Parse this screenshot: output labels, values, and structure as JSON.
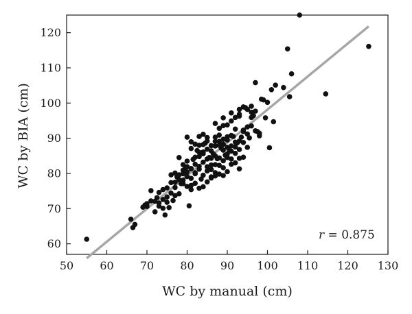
{
  "chart_data": {
    "type": "scatter",
    "title": "",
    "xlabel": "WC by manual (cm)",
    "ylabel": "WC by BIA (cm)",
    "xlim": [
      50,
      130
    ],
    "ylim": [
      57,
      125
    ],
    "xticks": [
      50,
      60,
      70,
      80,
      90,
      100,
      110,
      120,
      130
    ],
    "yticks": [
      60,
      70,
      80,
      90,
      100,
      110,
      120
    ],
    "grid": false,
    "annotation": {
      "prefix": "r",
      "text": " = 0.875"
    },
    "regression_line": {
      "color": "#a6a6a6",
      "x": [
        55,
        125.2
      ],
      "y": [
        55.9,
        121.8
      ]
    },
    "point_color": "#111111",
    "points": [
      [
        55,
        61.3
      ],
      [
        66,
        67
      ],
      [
        67,
        65.5
      ],
      [
        66.5,
        64.6
      ],
      [
        69,
        70.4
      ],
      [
        69.5,
        71
      ],
      [
        70,
        71.4
      ],
      [
        71,
        75.1
      ],
      [
        72,
        69.1
      ],
      [
        72.5,
        73.1
      ],
      [
        73,
        71.6
      ],
      [
        74,
        75.4
      ],
      [
        74.5,
        68.2
      ],
      [
        75,
        71.8
      ],
      [
        75.5,
        70.3
      ],
      [
        76,
        74.4
      ],
      [
        76.5,
        72.3
      ],
      [
        77,
        76
      ],
      [
        77.5,
        79
      ],
      [
        78,
        74.2
      ],
      [
        78.5,
        77.1
      ],
      [
        79,
        78.1
      ],
      [
        79.5,
        81.3
      ],
      [
        80,
        79.1
      ],
      [
        80.5,
        70.8
      ],
      [
        81,
        76.6
      ],
      [
        81.5,
        84
      ],
      [
        82,
        80.2
      ],
      [
        82.5,
        86.5
      ],
      [
        83,
        82
      ],
      [
        83.5,
        78.4
      ],
      [
        84,
        79.5
      ],
      [
        84.5,
        88.6
      ],
      [
        85,
        81.9
      ],
      [
        85.5,
        84.5
      ],
      [
        86,
        79
      ],
      [
        86.5,
        85.6
      ],
      [
        87,
        82.5
      ],
      [
        87.5,
        84.2
      ],
      [
        88,
        89.1
      ],
      [
        88.5,
        87.2
      ],
      [
        89,
        81.6
      ],
      [
        89.5,
        85.2
      ],
      [
        90,
        90.4
      ],
      [
        90.5,
        86.5
      ],
      [
        91,
        87.8
      ],
      [
        91.5,
        90.5
      ],
      [
        92,
        92.6
      ],
      [
        92.5,
        88.7
      ],
      [
        93,
        96.3
      ],
      [
        93.5,
        90.3
      ],
      [
        94,
        92.3
      ],
      [
        94.5,
        98.7
      ],
      [
        95,
        93.2
      ],
      [
        95.5,
        90.1
      ],
      [
        96,
        97.4
      ],
      [
        96.5,
        96.4
      ],
      [
        97,
        105.8
      ],
      [
        97.5,
        91.9
      ],
      [
        98,
        90.7
      ],
      [
        98.5,
        101.1
      ],
      [
        99,
        100.9
      ],
      [
        99.5,
        95.8
      ],
      [
        100,
        100.2
      ],
      [
        100.5,
        87.3
      ],
      [
        101,
        103.8
      ],
      [
        101.5,
        94.7
      ],
      [
        102,
        105.1
      ],
      [
        104,
        104.4
      ],
      [
        105,
        115.4
      ],
      [
        105.5,
        101.8
      ],
      [
        106,
        108.3
      ],
      [
        108,
        125
      ],
      [
        114.5,
        102.6
      ],
      [
        125.2,
        116.1
      ],
      [
        80,
        90.3
      ],
      [
        81,
        87.1
      ],
      [
        82,
        84.6
      ],
      [
        83,
        88
      ],
      [
        84,
        86.1
      ],
      [
        85,
        90.2
      ],
      [
        86,
        87.9
      ],
      [
        87,
        90.3
      ],
      [
        88,
        92.8
      ],
      [
        89,
        93.6
      ],
      [
        90,
        93.8
      ],
      [
        91,
        94.9
      ],
      [
        92,
        95.9
      ],
      [
        93,
        98.2
      ],
      [
        94,
        98.9
      ],
      [
        95,
        98.2
      ],
      [
        96,
        99.1
      ],
      [
        78,
        84.5
      ],
      [
        79,
        82.5
      ],
      [
        80,
        83.5
      ],
      [
        81,
        81.3
      ],
      [
        82,
        77.2
      ],
      [
        83,
        75.8
      ],
      [
        84,
        76.2
      ],
      [
        85,
        77.6
      ],
      [
        86,
        78.7
      ],
      [
        87,
        80.2
      ],
      [
        88,
        79.8
      ],
      [
        89,
        79.4
      ],
      [
        90,
        80.5
      ],
      [
        91,
        82.6
      ],
      [
        92,
        83
      ],
      [
        93,
        84.3
      ],
      [
        77,
        80.1
      ],
      [
        78,
        79.6
      ],
      [
        79,
        77.1
      ],
      [
        80,
        76.3
      ],
      [
        81,
        75.4
      ],
      [
        76,
        77.4
      ],
      [
        75,
        73.3
      ],
      [
        74,
        72.6
      ],
      [
        73,
        74.6
      ],
      [
        72,
        72.1
      ],
      [
        86,
        82.4
      ],
      [
        87,
        85
      ],
      [
        88,
        84.4
      ],
      [
        89,
        83.6
      ],
      [
        90,
        85.5
      ],
      [
        91,
        86.3
      ],
      [
        92,
        87.5
      ],
      [
        93,
        86.8
      ],
      [
        94,
        88.8
      ],
      [
        95,
        87.4
      ],
      [
        84,
        83.2
      ],
      [
        85,
        84.1
      ],
      [
        86,
        86.4
      ],
      [
        87,
        87.8
      ],
      [
        88,
        88
      ],
      [
        89,
        89.7
      ],
      [
        90,
        89.5
      ],
      [
        91,
        90.8
      ],
      [
        83,
        84.8
      ],
      [
        82,
        82.6
      ],
      [
        81,
        81.4
      ],
      [
        80,
        80.4
      ],
      [
        79,
        79.9
      ],
      [
        78,
        78.2
      ],
      [
        77,
        77.5
      ],
      [
        89,
        86.6
      ],
      [
        90,
        84.5
      ],
      [
        92,
        88.9
      ],
      [
        93,
        89.2
      ],
      [
        94,
        91.9
      ],
      [
        96,
        93.5
      ],
      [
        97,
        92.1
      ],
      [
        98,
        91.4
      ],
      [
        95,
        91.2
      ],
      [
        85,
        80.7
      ],
      [
        86,
        81.1
      ],
      [
        87,
        79.3
      ],
      [
        88,
        82.3
      ],
      [
        84,
        85.6
      ],
      [
        83,
        81.2
      ],
      [
        82,
        79.9
      ],
      [
        81,
        78.6
      ],
      [
        80,
        81.9
      ],
      [
        79,
        80.9
      ],
      [
        91,
        84.1
      ],
      [
        92,
        85.7
      ],
      [
        93,
        81.3
      ],
      [
        94,
        84.6
      ],
      [
        89,
        88.3
      ],
      [
        90,
        87.4
      ],
      [
        88,
        90.9
      ],
      [
        87,
        89.1
      ],
      [
        86,
        84.3
      ],
      [
        85,
        86.9
      ],
      [
        84,
        88.2
      ],
      [
        83,
        86
      ],
      [
        82,
        88.3
      ],
      [
        81,
        89
      ],
      [
        87,
        94.2
      ],
      [
        89,
        95.8
      ],
      [
        91,
        97.2
      ],
      [
        93,
        96.8
      ],
      [
        96,
        95.9
      ],
      [
        97,
        97.7
      ],
      [
        75,
        75.9
      ],
      [
        76,
        79.6
      ],
      [
        77,
        73.7
      ],
      [
        73,
        70.7
      ],
      [
        74,
        70.1
      ],
      [
        71,
        72.2
      ],
      [
        70,
        70.6
      ],
      [
        83,
        90.5
      ],
      [
        84,
        91.1
      ],
      [
        85,
        89.2
      ]
    ]
  }
}
